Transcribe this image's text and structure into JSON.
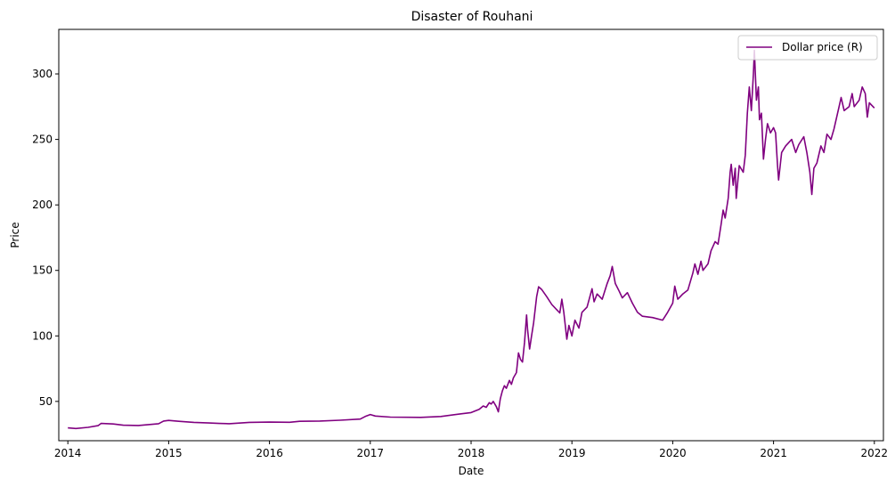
{
  "chart_data": {
    "type": "line",
    "title": "Disaster of Rouhani",
    "xlabel": "Date",
    "ylabel": "Price",
    "xlim": [
      2013.91,
      2022.09
    ],
    "ylim": [
      20,
      334
    ],
    "x_ticks": [
      2014,
      2015,
      2016,
      2017,
      2018,
      2019,
      2020,
      2021,
      2022
    ],
    "y_ticks": [
      50,
      100,
      150,
      200,
      250,
      300
    ],
    "grid": false,
    "legend_position": "upper right",
    "series": [
      {
        "name": "Dollar price (R)",
        "color": "#800080",
        "points": [
          [
            2014.0,
            29.8
          ],
          [
            2014.08,
            29.3
          ],
          [
            2014.2,
            30.2
          ],
          [
            2014.3,
            31.5
          ],
          [
            2014.33,
            33.2
          ],
          [
            2014.45,
            32.8
          ],
          [
            2014.55,
            31.8
          ],
          [
            2014.7,
            31.6
          ],
          [
            2014.9,
            33.0
          ],
          [
            2014.95,
            35.0
          ],
          [
            2015.0,
            35.5
          ],
          [
            2015.1,
            34.8
          ],
          [
            2015.25,
            34.0
          ],
          [
            2015.4,
            33.5
          ],
          [
            2015.5,
            33.2
          ],
          [
            2015.6,
            33.0
          ],
          [
            2015.8,
            34.0
          ],
          [
            2016.0,
            34.2
          ],
          [
            2016.2,
            34.1
          ],
          [
            2016.3,
            34.8
          ],
          [
            2016.5,
            35.0
          ],
          [
            2016.7,
            35.6
          ],
          [
            2016.9,
            36.5
          ],
          [
            2016.95,
            38.5
          ],
          [
            2017.0,
            40.0
          ],
          [
            2017.05,
            38.8
          ],
          [
            2017.2,
            38.0
          ],
          [
            2017.5,
            37.8
          ],
          [
            2017.7,
            38.5
          ],
          [
            2017.9,
            40.5
          ],
          [
            2018.0,
            41.5
          ],
          [
            2018.08,
            44.0
          ],
          [
            2018.12,
            46.5
          ],
          [
            2018.15,
            45.5
          ],
          [
            2018.18,
            49.0
          ],
          [
            2018.2,
            48.0
          ],
          [
            2018.22,
            50.0
          ],
          [
            2018.25,
            46.0
          ],
          [
            2018.27,
            42.0
          ],
          [
            2018.29,
            52.0
          ],
          [
            2018.31,
            58.0
          ],
          [
            2018.33,
            62.0
          ],
          [
            2018.35,
            60.0
          ],
          [
            2018.38,
            66.0
          ],
          [
            2018.4,
            63.0
          ],
          [
            2018.42,
            68.0
          ],
          [
            2018.45,
            72.0
          ],
          [
            2018.47,
            87.0
          ],
          [
            2018.49,
            82.0
          ],
          [
            2018.51,
            80.0
          ],
          [
            2018.53,
            95.0
          ],
          [
            2018.55,
            116.0
          ],
          [
            2018.56,
            105.0
          ],
          [
            2018.58,
            90.0
          ],
          [
            2018.6,
            100.0
          ],
          [
            2018.62,
            110.0
          ],
          [
            2018.65,
            130.0
          ],
          [
            2018.67,
            137.5
          ],
          [
            2018.7,
            135.5
          ],
          [
            2018.75,
            130.0
          ],
          [
            2018.8,
            124.0
          ],
          [
            2018.85,
            120.0
          ],
          [
            2018.88,
            117.5
          ],
          [
            2018.9,
            128.0
          ],
          [
            2018.92,
            118.0
          ],
          [
            2018.95,
            97.5
          ],
          [
            2018.97,
            108.0
          ],
          [
            2019.0,
            100.0
          ],
          [
            2019.03,
            112.0
          ],
          [
            2019.07,
            106.0
          ],
          [
            2019.1,
            118.0
          ],
          [
            2019.15,
            122.0
          ],
          [
            2019.2,
            136.0
          ],
          [
            2019.22,
            126.0
          ],
          [
            2019.25,
            132.0
          ],
          [
            2019.3,
            128.0
          ],
          [
            2019.35,
            140.0
          ],
          [
            2019.38,
            146.0
          ],
          [
            2019.4,
            153.0
          ],
          [
            2019.43,
            140.0
          ],
          [
            2019.47,
            134.0
          ],
          [
            2019.5,
            129.0
          ],
          [
            2019.55,
            133.0
          ],
          [
            2019.6,
            125.0
          ],
          [
            2019.65,
            118.0
          ],
          [
            2019.7,
            115.0
          ],
          [
            2019.8,
            114.0
          ],
          [
            2019.9,
            112.0
          ],
          [
            2019.95,
            118.0
          ],
          [
            2020.0,
            125.0
          ],
          [
            2020.02,
            138.0
          ],
          [
            2020.05,
            128.0
          ],
          [
            2020.1,
            132.0
          ],
          [
            2020.15,
            135.0
          ],
          [
            2020.2,
            148.0
          ],
          [
            2020.22,
            155.0
          ],
          [
            2020.25,
            147.0
          ],
          [
            2020.28,
            157.0
          ],
          [
            2020.3,
            150.0
          ],
          [
            2020.35,
            155.0
          ],
          [
            2020.38,
            165.0
          ],
          [
            2020.42,
            172.0
          ],
          [
            2020.45,
            170.0
          ],
          [
            2020.48,
            185.0
          ],
          [
            2020.5,
            196.0
          ],
          [
            2020.52,
            190.0
          ],
          [
            2020.55,
            205.0
          ],
          [
            2020.57,
            225.0
          ],
          [
            2020.58,
            231.0
          ],
          [
            2020.6,
            215.0
          ],
          [
            2020.62,
            228.0
          ],
          [
            2020.63,
            205.0
          ],
          [
            2020.66,
            230.0
          ],
          [
            2020.7,
            225.0
          ],
          [
            2020.72,
            238.0
          ],
          [
            2020.74,
            270.0
          ],
          [
            2020.76,
            290.0
          ],
          [
            2020.78,
            272.0
          ],
          [
            2020.8,
            300.0
          ],
          [
            2020.81,
            318.0
          ],
          [
            2020.83,
            280.0
          ],
          [
            2020.85,
            290.0
          ],
          [
            2020.86,
            265.0
          ],
          [
            2020.88,
            270.0
          ],
          [
            2020.9,
            235.0
          ],
          [
            2020.92,
            250.0
          ],
          [
            2020.94,
            262.0
          ],
          [
            2020.97,
            255.0
          ],
          [
            2021.0,
            259.0
          ],
          [
            2021.02,
            255.0
          ],
          [
            2021.04,
            230.0
          ],
          [
            2021.05,
            219.0
          ],
          [
            2021.08,
            240.0
          ],
          [
            2021.12,
            245.0
          ],
          [
            2021.18,
            250.0
          ],
          [
            2021.22,
            240.0
          ],
          [
            2021.25,
            246.0
          ],
          [
            2021.3,
            252.0
          ],
          [
            2021.33,
            240.0
          ],
          [
            2021.36,
            225.0
          ],
          [
            2021.38,
            208.0
          ],
          [
            2021.4,
            228.0
          ],
          [
            2021.43,
            232.0
          ],
          [
            2021.47,
            245.0
          ],
          [
            2021.5,
            240.0
          ],
          [
            2021.53,
            254.0
          ],
          [
            2021.57,
            250.0
          ],
          [
            2021.6,
            258.0
          ],
          [
            2021.65,
            275.0
          ],
          [
            2021.67,
            282.0
          ],
          [
            2021.7,
            272.0
          ],
          [
            2021.75,
            275.0
          ],
          [
            2021.78,
            285.0
          ],
          [
            2021.8,
            275.0
          ],
          [
            2021.85,
            280.0
          ],
          [
            2021.88,
            290.0
          ],
          [
            2021.91,
            285.0
          ],
          [
            2021.93,
            267.0
          ],
          [
            2021.95,
            278.0
          ],
          [
            2022.0,
            274.0
          ]
        ]
      }
    ]
  }
}
